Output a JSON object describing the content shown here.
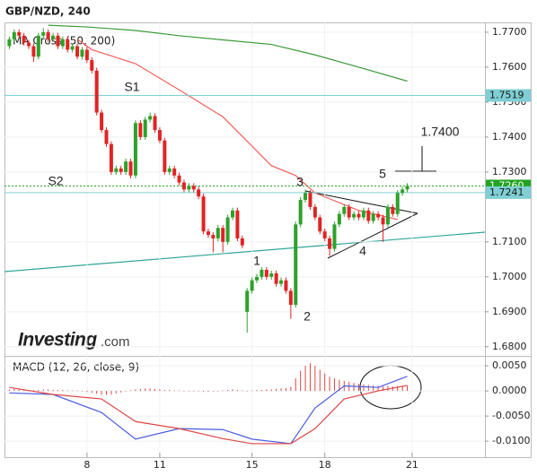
{
  "branding": {
    "logo": "Investing",
    "suffix": ".com"
  },
  "chart_data": [
    {
      "type": "candlestick",
      "title": "GBP/NZD, 240",
      "legend_label": "MA Cross (50, 200)",
      "xlim": [
        -1,
        98
      ],
      "xticks": [
        {
          "value": 16,
          "label": "8"
        },
        {
          "value": 31,
          "label": "11"
        },
        {
          "value": 50,
          "label": "15"
        },
        {
          "value": 65,
          "label": "18"
        },
        {
          "value": 83,
          "label": "21"
        }
      ],
      "ylim": [
        1.6779,
        1.7728
      ],
      "yticks": [
        {
          "value": 1.68,
          "label": "1.6800"
        },
        {
          "value": 1.69,
          "label": "1.6900"
        },
        {
          "value": 1.7,
          "label": "1.7000"
        },
        {
          "value": 1.71,
          "label": "1.7100"
        },
        {
          "value": 1.73,
          "label": "1.7300"
        },
        {
          "value": 1.74,
          "label": "1.7400"
        },
        {
          "value": 1.75,
          "label": "1.7500"
        },
        {
          "value": 1.76,
          "label": "1.7600"
        },
        {
          "value": 1.77,
          "label": "1.7700"
        }
      ],
      "grid": true,
      "up_color": "#2ea12b",
      "down_color": "#e02424",
      "open": [
        1.766,
        1.768,
        1.77,
        1.769,
        1.767,
        1.766,
        1.763,
        1.769,
        1.77,
        1.768,
        1.769,
        1.766,
        1.768,
        1.765,
        1.766,
        1.763,
        1.765,
        1.762,
        1.759,
        1.747,
        1.742,
        1.738,
        1.73,
        1.731,
        1.73,
        1.733,
        1.729,
        1.744,
        1.74,
        1.745,
        1.746,
        1.742,
        1.739,
        1.73,
        1.731,
        1.729,
        1.727,
        1.725,
        1.726,
        1.725,
        1.723,
        1.713,
        1.712,
        1.711,
        1.714,
        1.71,
        1.717,
        1.719,
        1.711,
        1.69,
        1.696,
        1.699,
        1.7,
        1.702,
        1.7,
        1.701,
        1.698,
        1.699,
        1.696,
        1.692,
        1.715,
        1.722,
        1.724,
        1.72,
        1.717,
        1.713,
        1.711,
        1.708,
        1.715,
        1.718,
        1.72,
        1.717,
        1.718,
        1.717,
        1.719,
        1.716,
        1.718,
        1.717,
        1.715,
        1.72,
        1.718,
        1.724,
        1.725
      ],
      "high": [
        1.7688,
        1.7708,
        1.7708,
        1.7698,
        1.7678,
        1.7668,
        1.7698,
        1.7712,
        1.7708,
        1.7698,
        1.7698,
        1.7688,
        1.7688,
        1.7668,
        1.7668,
        1.7658,
        1.7658,
        1.7628,
        1.7598,
        1.7478,
        1.7428,
        1.7388,
        1.7318,
        1.7318,
        1.7338,
        1.7338,
        1.7448,
        1.7448,
        1.7458,
        1.747,
        1.7468,
        1.7428,
        1.7398,
        1.7318,
        1.7318,
        1.7298,
        1.7278,
        1.7268,
        1.7268,
        1.7258,
        1.7238,
        1.7138,
        1.7128,
        1.7148,
        1.7148,
        1.7178,
        1.7198,
        1.7198,
        1.7118,
        1.6968,
        1.6998,
        1.7008,
        1.7028,
        1.7028,
        1.7018,
        1.7018,
        1.6998,
        1.6998,
        1.6968,
        1.7158,
        1.7228,
        1.725,
        1.7248,
        1.7208,
        1.7178,
        1.7138,
        1.7118,
        1.7158,
        1.7188,
        1.7208,
        1.7208,
        1.7188,
        1.7188,
        1.7198,
        1.7198,
        1.7188,
        1.7188,
        1.7178,
        1.7208,
        1.7208,
        1.7248,
        1.7258,
        1.7268
      ],
      "low": [
        1.7652,
        1.7672,
        1.7682,
        1.7662,
        1.7652,
        1.7615,
        1.7622,
        1.7682,
        1.7672,
        1.7672,
        1.7652,
        1.7652,
        1.7642,
        1.7642,
        1.7622,
        1.7622,
        1.7612,
        1.7582,
        1.7462,
        1.7412,
        1.7372,
        1.7292,
        1.7292,
        1.7292,
        1.7292,
        1.7282,
        1.7282,
        1.7392,
        1.7392,
        1.7442,
        1.7412,
        1.7382,
        1.7292,
        1.7292,
        1.7282,
        1.7262,
        1.7242,
        1.7242,
        1.7242,
        1.7222,
        1.7122,
        1.7112,
        1.707,
        1.7102,
        1.707,
        1.7092,
        1.7162,
        1.7102,
        1.7082,
        1.684,
        1.6952,
        1.6982,
        1.6992,
        1.6992,
        1.6992,
        1.6972,
        1.6972,
        1.6952,
        1.688,
        1.6912,
        1.7142,
        1.7212,
        1.7192,
        1.7162,
        1.7122,
        1.7102,
        1.706,
        1.7072,
        1.7142,
        1.7172,
        1.7162,
        1.7162,
        1.7162,
        1.7162,
        1.7152,
        1.7152,
        1.7162,
        1.71,
        1.7142,
        1.7172,
        1.7172,
        1.7232,
        1.7242
      ],
      "close": [
        1.768,
        1.77,
        1.769,
        1.767,
        1.766,
        1.763,
        1.769,
        1.77,
        1.768,
        1.769,
        1.766,
        1.768,
        1.765,
        1.766,
        1.763,
        1.765,
        1.762,
        1.759,
        1.747,
        1.742,
        1.738,
        1.73,
        1.731,
        1.73,
        1.733,
        1.729,
        1.744,
        1.74,
        1.745,
        1.746,
        1.742,
        1.739,
        1.73,
        1.731,
        1.729,
        1.727,
        1.725,
        1.726,
        1.725,
        1.723,
        1.713,
        1.712,
        1.711,
        1.714,
        1.71,
        1.717,
        1.719,
        1.711,
        1.709,
        1.696,
        1.699,
        1.7,
        1.702,
        1.7,
        1.701,
        1.698,
        1.699,
        1.696,
        1.692,
        1.715,
        1.722,
        1.724,
        1.72,
        1.717,
        1.713,
        1.711,
        1.708,
        1.715,
        1.718,
        1.72,
        1.717,
        1.718,
        1.717,
        1.719,
        1.716,
        1.718,
        1.717,
        1.715,
        1.72,
        1.718,
        1.724,
        1.725,
        1.726
      ],
      "lines": [
        {
          "color": "#3a9a3a",
          "x": [
            8,
            16,
            26,
            35,
            44,
            54,
            63,
            72,
            82
          ],
          "values": [
            1.772,
            1.7715,
            1.7705,
            1.769,
            1.7678,
            1.7665,
            1.7635,
            1.76,
            1.756
          ]
        },
        {
          "color": "#f0605a",
          "x": [
            14,
            17,
            26,
            35,
            44,
            54,
            59,
            63,
            72,
            80
          ],
          "values": [
            1.768,
            1.765,
            1.761,
            1.7535,
            1.7458,
            1.7318,
            1.729,
            1.724,
            1.719,
            1.7164
          ]
        }
      ],
      "levels": [
        {
          "value": 1.7519,
          "label": "1.7519",
          "color": "#7fcfd4",
          "text_color": "#1a1a1a",
          "dash": false
        },
        {
          "value": 1.726,
          "label": "1.7260",
          "color": "#22a322",
          "text_color": "#ffffff",
          "dash": true
        },
        {
          "value": 1.7241,
          "label": "1.7241",
          "color": "#7fcfd4",
          "text_color": "#1a1a1a",
          "dash": false
        }
      ],
      "annotations": [
        "S1",
        "S2",
        "1",
        "2",
        "3",
        "4",
        "5",
        "1.7400"
      ]
    },
    {
      "type": "macd",
      "title": "MACD (12, 26, close, 9)",
      "xlim": [
        -1,
        98
      ],
      "ylim": [
        -0.0123,
        0.0068
      ],
      "yticks": [
        {
          "value": 0.005,
          "label": "0.0050"
        },
        {
          "value": 0,
          "label": "0.0000"
        },
        {
          "value": -0.005,
          "label": "-0.0050"
        },
        {
          "value": -0.01,
          "label": "-0.0100"
        }
      ],
      "histogram": {
        "color": "#e04545",
        "values": [
          0.0003,
          0.0004,
          0.0003,
          0.0002,
          0.0002,
          0.0001,
          0.0002,
          0.0003,
          0.0003,
          0.0002,
          0.0002,
          0.0002,
          0.0001,
          0.0001,
          0.0001,
          0,
          -0.0002,
          -0.0004,
          -0.0006,
          -0.0008,
          -0.0008,
          -0.0007,
          -0.0005,
          -0.0003,
          -0.0001,
          0.0001,
          0.0003,
          0.0004,
          0.0005,
          0.0005,
          0.0004,
          0.0003,
          0.0002,
          0.0002,
          0.0001,
          0.0001,
          0,
          0,
          -0.0001,
          -0.0001,
          -0.0002,
          -0.0002,
          -0.0001,
          0,
          0.0001,
          0.0002,
          0.0003,
          0.0002,
          0.0001,
          0,
          0.0001,
          0.0002,
          0.0002,
          0.0003,
          0.0003,
          0.0004,
          0.0005,
          0.0006,
          0.0008,
          0.0025,
          0.004,
          0.005,
          0.0055,
          0.005,
          0.0042,
          0.0035,
          0.0028,
          0.0025,
          0.0022,
          0.002,
          0.0018,
          0.0016,
          0.0014,
          0.0013,
          0.0012,
          0.0011,
          0.001,
          0.0009,
          0.001,
          0.0009,
          0.001,
          0.001,
          0.0011
        ]
      },
      "series": [
        {
          "color": "#4a5be0",
          "x": [
            0,
            9,
            19,
            26,
            35,
            44,
            50,
            58,
            63,
            69,
            76,
            82
          ],
          "values": [
            -0.0004,
            -0.0007,
            -0.0043,
            -0.0096,
            -0.0075,
            -0.0077,
            -0.0096,
            -0.0105,
            -0.0034,
            0.001,
            0.0007,
            0.0029
          ]
        },
        {
          "color": "#e04545",
          "x": [
            0,
            9,
            19,
            26,
            35,
            44,
            50,
            58,
            63,
            69,
            76,
            82
          ],
          "values": [
            0.0007,
            -0.0007,
            -0.0016,
            -0.0061,
            -0.0075,
            -0.0095,
            -0.0105,
            -0.0105,
            -0.0075,
            -0.0016,
            0,
            0.0011
          ]
        }
      ]
    }
  ]
}
